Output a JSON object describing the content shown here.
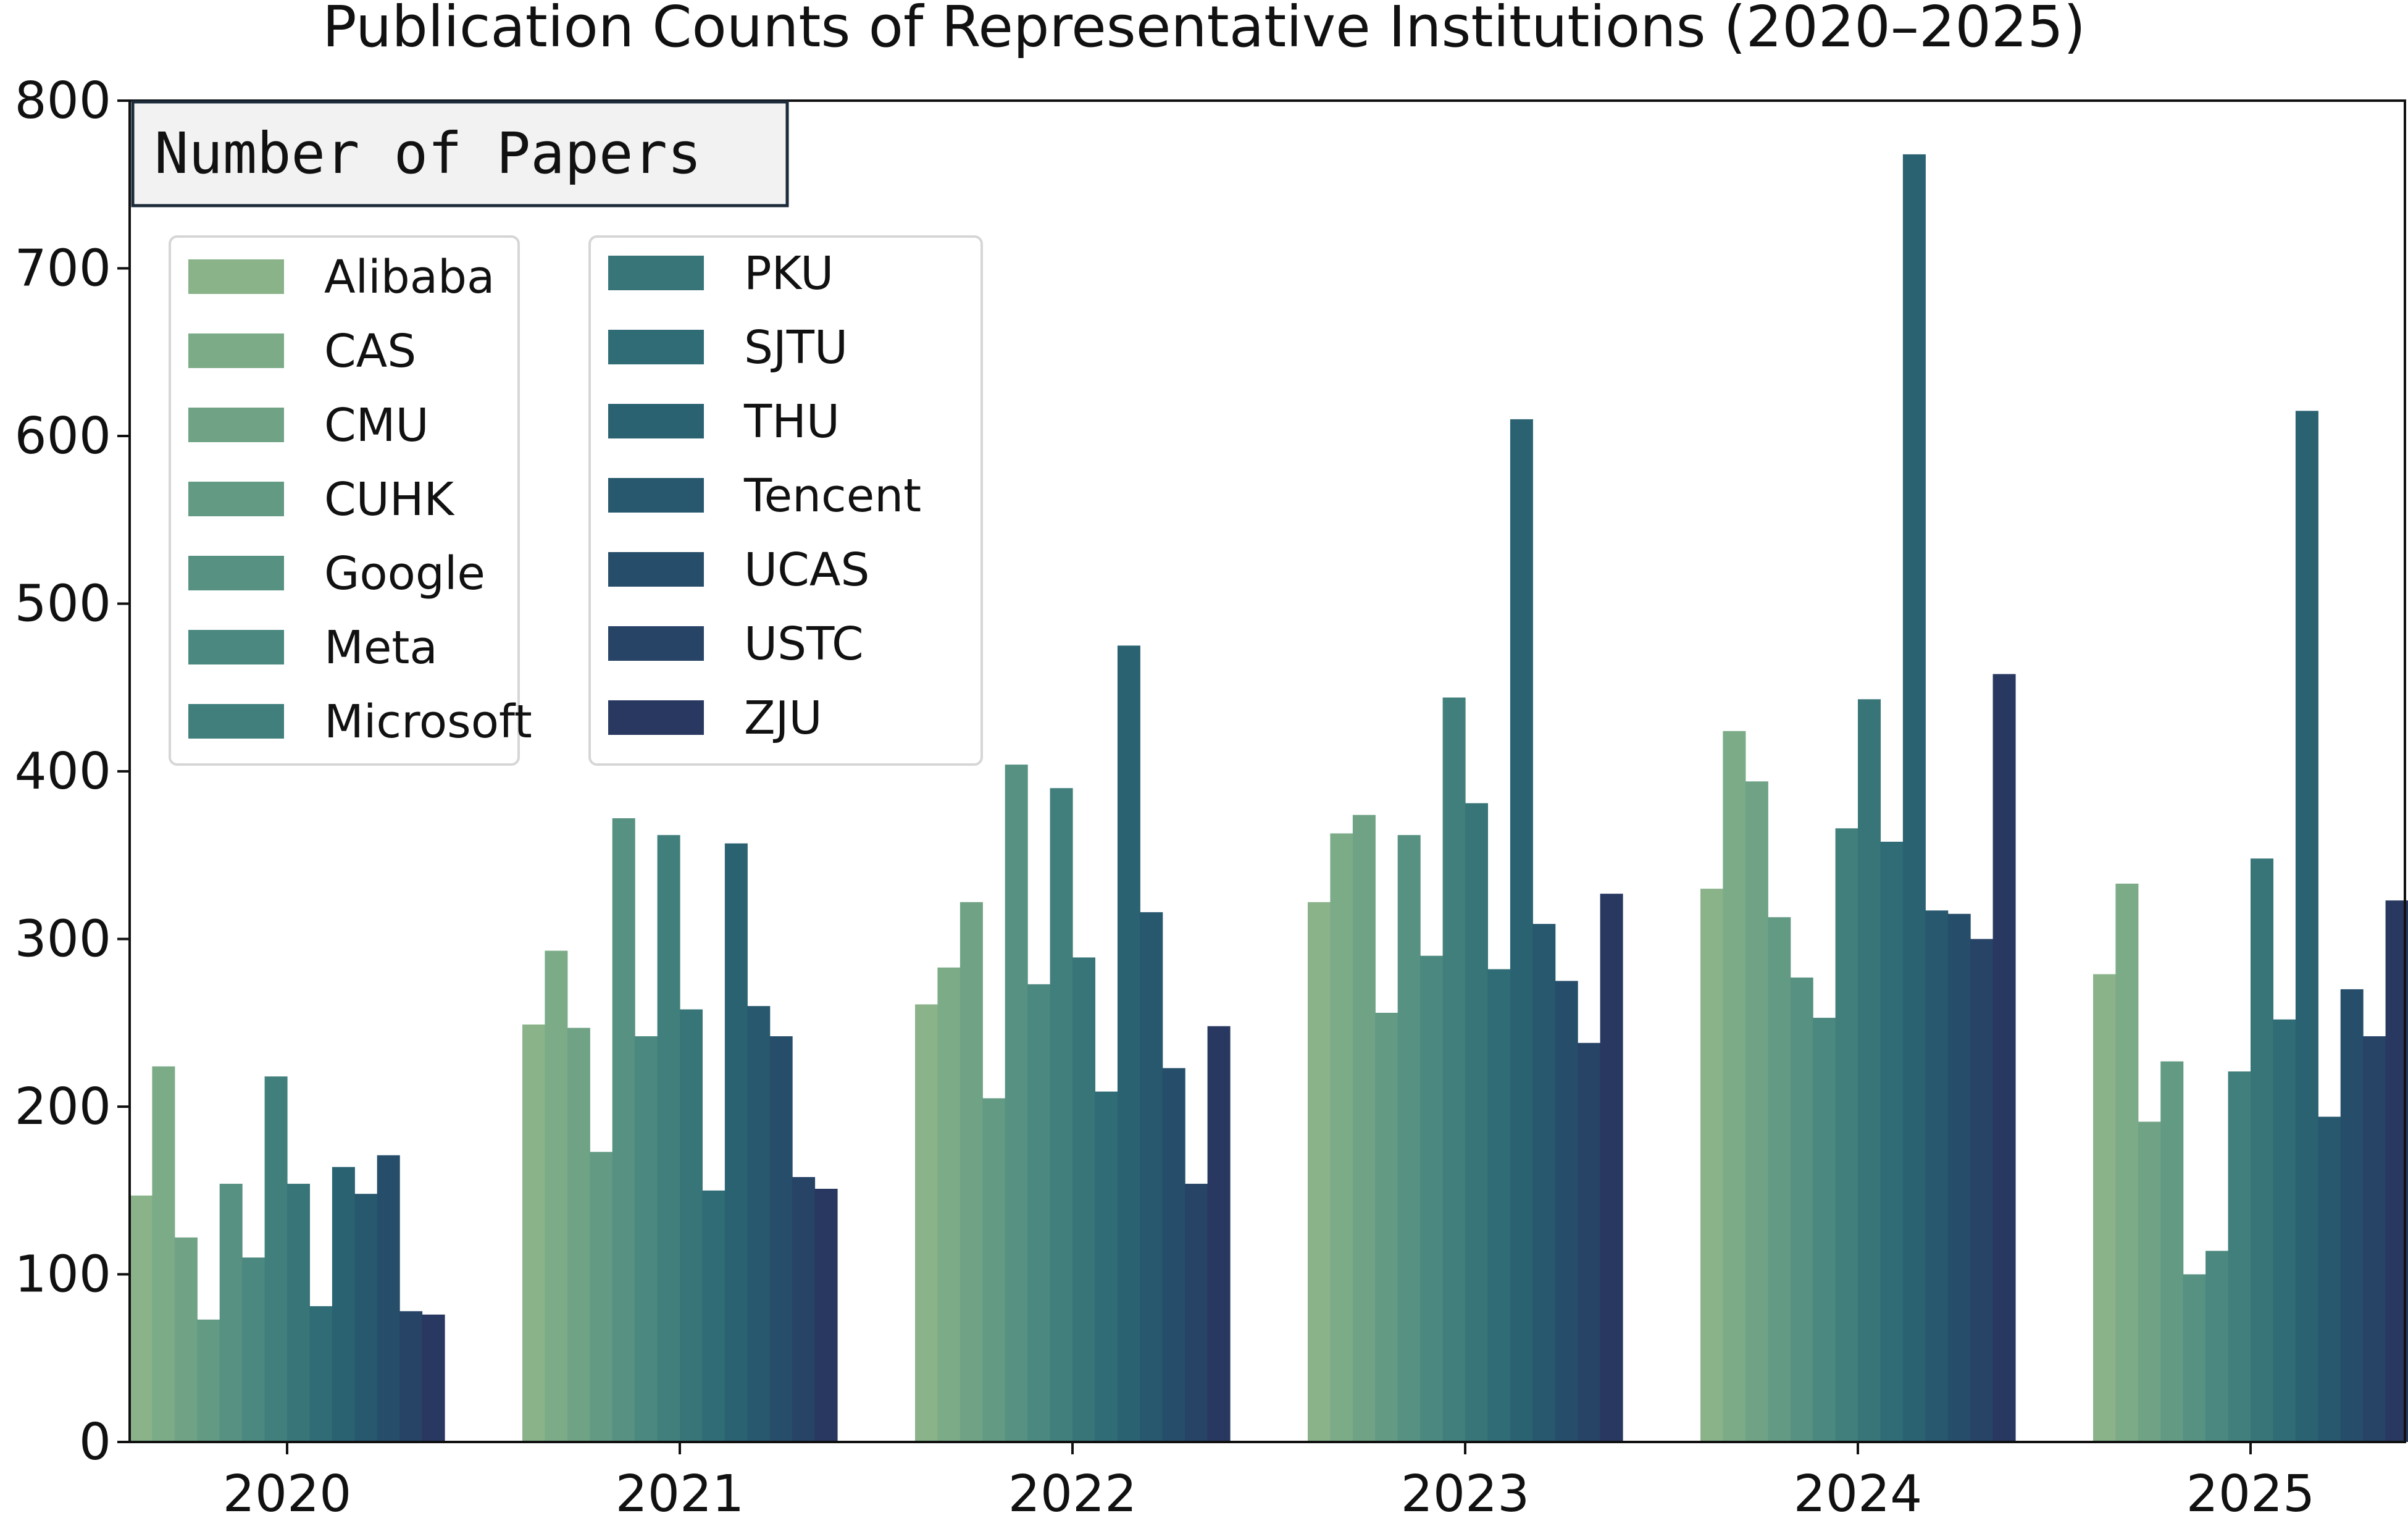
{
  "chart_data": {
    "type": "bar",
    "title": "Publication Counts of Representative Institutions (2020–2025)",
    "ylabel": "Number of Papers",
    "xlabel": "",
    "ylim": [
      0,
      800
    ],
    "yticks": [
      0,
      100,
      200,
      300,
      400,
      500,
      600,
      700,
      800
    ],
    "categories": [
      "2020",
      "2021",
      "2022",
      "2023",
      "2024",
      "2025"
    ],
    "legend_position": "top-left",
    "series": [
      {
        "name": "Alibaba",
        "color": "#8ab38a",
        "values": [
          147,
          249,
          261,
          322,
          330,
          279
        ]
      },
      {
        "name": "CAS",
        "color": "#7cab88",
        "values": [
          224,
          293,
          283,
          363,
          424,
          333
        ]
      },
      {
        "name": "CMU",
        "color": "#70a386",
        "values": [
          122,
          247,
          322,
          374,
          394,
          191
        ]
      },
      {
        "name": "CUHK",
        "color": "#639a84",
        "values": [
          73,
          173,
          205,
          256,
          313,
          227
        ]
      },
      {
        "name": "Google",
        "color": "#569181",
        "values": [
          154,
          372,
          404,
          362,
          277,
          100
        ]
      },
      {
        "name": "Meta",
        "color": "#4b887f",
        "values": [
          110,
          242,
          273,
          290,
          253,
          114
        ]
      },
      {
        "name": "Microsoft",
        "color": "#417f7c",
        "values": [
          218,
          362,
          390,
          444,
          366,
          221
        ]
      },
      {
        "name": "PKU",
        "color": "#387579",
        "values": [
          154,
          258,
          289,
          381,
          443,
          348
        ]
      },
      {
        "name": "SJTU",
        "color": "#306c76",
        "values": [
          81,
          150,
          209,
          282,
          358,
          252
        ]
      },
      {
        "name": "THU",
        "color": "#2a6272",
        "values": [
          164,
          357,
          475,
          610,
          768,
          615
        ]
      },
      {
        "name": "Tencent",
        "color": "#27586e",
        "values": [
          148,
          260,
          316,
          309,
          317,
          194
        ]
      },
      {
        "name": "UCAS",
        "color": "#264e6a",
        "values": [
          171,
          242,
          223,
          275,
          315,
          270
        ]
      },
      {
        "name": "USTC",
        "color": "#274366",
        "values": [
          78,
          158,
          154,
          238,
          300,
          242
        ]
      },
      {
        "name": "ZJU",
        "color": "#283860",
        "values": [
          76,
          151,
          248,
          327,
          458,
          323
        ]
      }
    ]
  }
}
